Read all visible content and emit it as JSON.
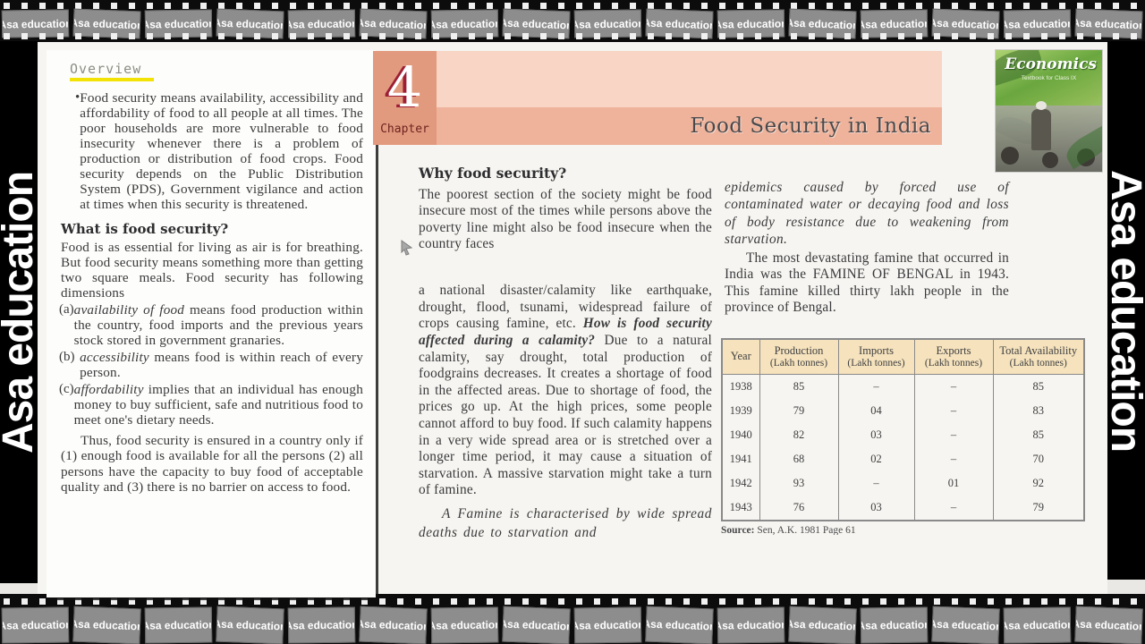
{
  "filmstrip": {
    "label": "Asa education",
    "top_count": 16,
    "bottom_count": 16
  },
  "side_bars": {
    "left_label": "Asa education",
    "right_label": "Asa education"
  },
  "page": {
    "chapter": {
      "number": "4",
      "label": "Chapter",
      "title": "Food Security in India"
    },
    "book_cover": {
      "title": "Economics",
      "subtitle": "Textbook for Class IX"
    },
    "left_column": {
      "overview_heading": "Overview",
      "bullet_glyph": "•",
      "overview_bullet": "Food security means availability, accessibility and affordability of food to all people at all times. The poor households are more vulnerable to food insecurity whenever there is a problem of production or distribution of food crops. Food security depends on the Public Distribution System (PDS), Government vigilance and action at times when this security is threatened.",
      "what_heading": "What is food security?",
      "what_para": "Food is as essential for living as air is for breathing. But food security means something more than getting two square meals. Food security has following dimensions",
      "items": [
        {
          "label": "(a)",
          "term": "availability of food",
          "rest": " means food production within the country, food imports and the previous years stock stored in government granaries."
        },
        {
          "label": "(b)",
          "term": "accessibility",
          "rest": " means food is within reach of every person."
        },
        {
          "label": "(c)",
          "term": "affordability",
          "rest": " implies that an individual has enough money to buy sufficient, safe and nutritious food to meet one's dietary needs."
        }
      ],
      "thus_para": "Thus, food security is ensured in a country only if (1) enough food is available for all the persons (2) all persons have the capacity to buy food of acceptable quality and (3) there is no barrier on access to food."
    },
    "middle_column": {
      "why_heading": "Why food security?",
      "para1": "The poorest section of the society might be food insecure most of the times while persons above the poverty line might also be food insecure when the country faces",
      "para2_pre": "a national disaster/calamity like earthquake, drought, flood, tsunami, widespread failure of crops causing famine, etc. ",
      "para2_bold": "How is food security affected during a calamity?",
      "para2_post": " Due to a natural calamity, say drought, total production of foodgrains decreases. It creates a shortage of food in the affected areas. Due to shortage of food, the prices go up. At the high prices, some people cannot afford to buy food. If such calamity happens in a very wide spread area or is stretched over a longer time period, it may cause a situation of starvation. A massive starvation might take a turn of famine.",
      "para3_italic": "A Famine is characterised by wide spread deaths due to starvation and"
    },
    "right_column": {
      "italic_para": "epidemics caused by forced use of contaminated water or decaying food and loss of body resistance due to weakening from starvation.",
      "para": "The most devastating famine that occurred in India was the FAMINE OF BENGAL in 1943. This famine killed thirty lakh people in the province of Bengal."
    },
    "table": {
      "headers": [
        {
          "line1": "Year",
          "line2": ""
        },
        {
          "line1": "Production",
          "line2": "(Lakh tonnes)"
        },
        {
          "line1": "Imports",
          "line2": "(Lakh tonnes)"
        },
        {
          "line1": "Exports",
          "line2": "(Lakh tonnes)"
        },
        {
          "line1": "Total Availability",
          "line2": "(Lakh tonnes)"
        }
      ],
      "rows": [
        [
          "1938",
          "85",
          "–",
          "–",
          "85"
        ],
        [
          "1939",
          "79",
          "04",
          "–",
          "83"
        ],
        [
          "1940",
          "82",
          "03",
          "–",
          "85"
        ],
        [
          "1941",
          "68",
          "02",
          "–",
          "70"
        ],
        [
          "1942",
          "93",
          "–",
          "01",
          "92"
        ],
        [
          "1943",
          "76",
          "03",
          "–",
          "79"
        ]
      ],
      "source_label": "Source:",
      "source_rest": " Sen, A.K. 1981 Page 61"
    }
  }
}
